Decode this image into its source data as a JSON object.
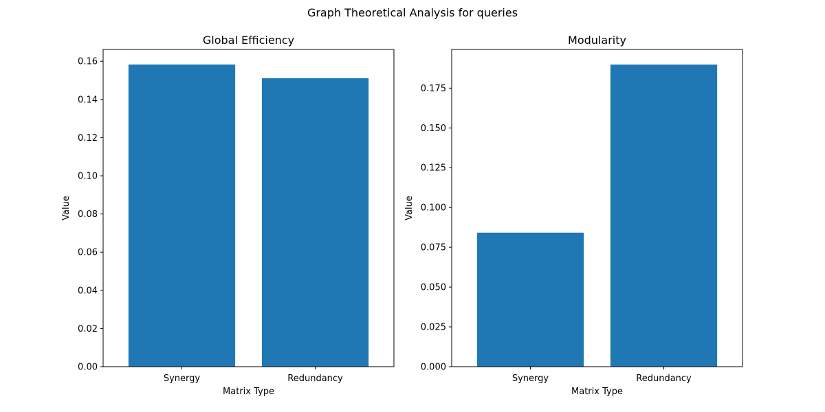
{
  "figure": {
    "suptitle": "Graph Theoretical Analysis for queries"
  },
  "chart_data": [
    {
      "type": "bar",
      "title": "Global Efficiency",
      "xlabel": "Matrix Type",
      "ylabel": "Value",
      "categories": [
        "Synergy",
        "Redundancy"
      ],
      "values": [
        0.1583,
        0.1511
      ],
      "ylim": [
        0,
        0.1662
      ],
      "yticks": [
        0.0,
        0.02,
        0.04,
        0.06,
        0.08,
        0.1,
        0.12,
        0.14,
        0.16
      ],
      "ytick_labels": [
        "0.00",
        "0.02",
        "0.04",
        "0.06",
        "0.08",
        "0.10",
        "0.12",
        "0.14",
        "0.16"
      ],
      "bar_color": "#1f77b4",
      "grid": false,
      "legend": false
    },
    {
      "type": "bar",
      "title": "Modularity",
      "xlabel": "Matrix Type",
      "ylabel": "Value",
      "categories": [
        "Synergy",
        "Redundancy"
      ],
      "values": [
        0.0842,
        0.1898
      ],
      "ylim": [
        0,
        0.1993
      ],
      "yticks": [
        0.0,
        0.025,
        0.05,
        0.075,
        0.1,
        0.125,
        0.15,
        0.175
      ],
      "ytick_labels": [
        "0.000",
        "0.025",
        "0.050",
        "0.075",
        "0.100",
        "0.125",
        "0.150",
        "0.175"
      ],
      "bar_color": "#1f77b4",
      "grid": false,
      "legend": false
    }
  ]
}
